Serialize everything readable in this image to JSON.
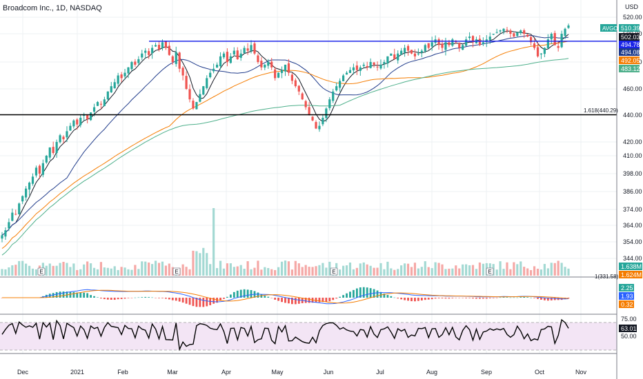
{
  "chart_data": {
    "type": "candlestick",
    "symbol_title": "Broadcom Inc., 1D, NASDAQ",
    "currency": "USD",
    "y_axis_ticks": [
      520.0,
      500.0,
      480.0,
      460.0,
      440.0,
      420.0,
      410.0,
      398.0,
      386.0,
      374.0,
      364.0,
      354.0,
      344.0
    ],
    "x_axis_labels": [
      "Dec",
      "2021",
      "Feb",
      "Mar",
      "Apr",
      "May",
      "Jun",
      "Jul",
      "Aug",
      "Sep",
      "Oct",
      "Nov"
    ],
    "price_badges": [
      {
        "label": "AVGO",
        "value": "510.39",
        "color": "#26a69a"
      },
      {
        "value": "502.03",
        "color": "#131722"
      },
      {
        "value": "494.78",
        "color": "#1b24e8"
      },
      {
        "value": "494.08",
        "color": "#1e3a8a"
      },
      {
        "value": "492.05",
        "color": "#f57c00"
      },
      {
        "value": "483.12",
        "color": "#4caf8a"
      }
    ],
    "horizontal_levels": [
      {
        "value": 494.78,
        "color": "#1b24e8"
      },
      {
        "value": 440.29,
        "color": "#000000",
        "label": "1.618(440.29)"
      }
    ],
    "fib_partial_label": "1(331.58)",
    "volume_badges": [
      {
        "value": "1.638M",
        "color": "#26a69a"
      },
      {
        "value": "1.624M",
        "color": "#f57c00"
      }
    ],
    "macd_badges": [
      {
        "value": "2.25",
        "color": "#26a69a"
      },
      {
        "value": "1.93",
        "color": "#2962ff"
      },
      {
        "value": "0.32",
        "color": "#f57c00"
      }
    ],
    "rsi": {
      "value": "63.01",
      "upper_label": "75.00",
      "mid_label": "50.00"
    },
    "earnings_marker": "E",
    "close_series": [
      358,
      361,
      366,
      372,
      371,
      378,
      383,
      388,
      392,
      396,
      402,
      398,
      405,
      410,
      416,
      412,
      420,
      425,
      422,
      428,
      432,
      436,
      433,
      438,
      440,
      437,
      442,
      446,
      450,
      448,
      452,
      458,
      462,
      465,
      470,
      468,
      472,
      476,
      480,
      478,
      482,
      486,
      488,
      485,
      490,
      492,
      489,
      494,
      490,
      485,
      480,
      487,
      475,
      470,
      460,
      452,
      445,
      450,
      456,
      462,
      468,
      472,
      475,
      478,
      484,
      486,
      480,
      484,
      488,
      482,
      486,
      490,
      488,
      492,
      486,
      480,
      476,
      478,
      480,
      476,
      468,
      472,
      474,
      478,
      472,
      466,
      462,
      458,
      452,
      446,
      440,
      436,
      430,
      432,
      438,
      445,
      452,
      458,
      462,
      466,
      470,
      472,
      474,
      476,
      474,
      476,
      478,
      476,
      480,
      478,
      476,
      478,
      480,
      484,
      486,
      482,
      486,
      488,
      490,
      488,
      486,
      484,
      486,
      488,
      492,
      490,
      494,
      496,
      492,
      490,
      494,
      492,
      496,
      494,
      490,
      492,
      496,
      498,
      494,
      496,
      492,
      494,
      496,
      498,
      500,
      502,
      504,
      506,
      504,
      500,
      498,
      502,
      504,
      500,
      498,
      494,
      490,
      484,
      486,
      490,
      496,
      500,
      492,
      490,
      500,
      506,
      510
    ]
  }
}
